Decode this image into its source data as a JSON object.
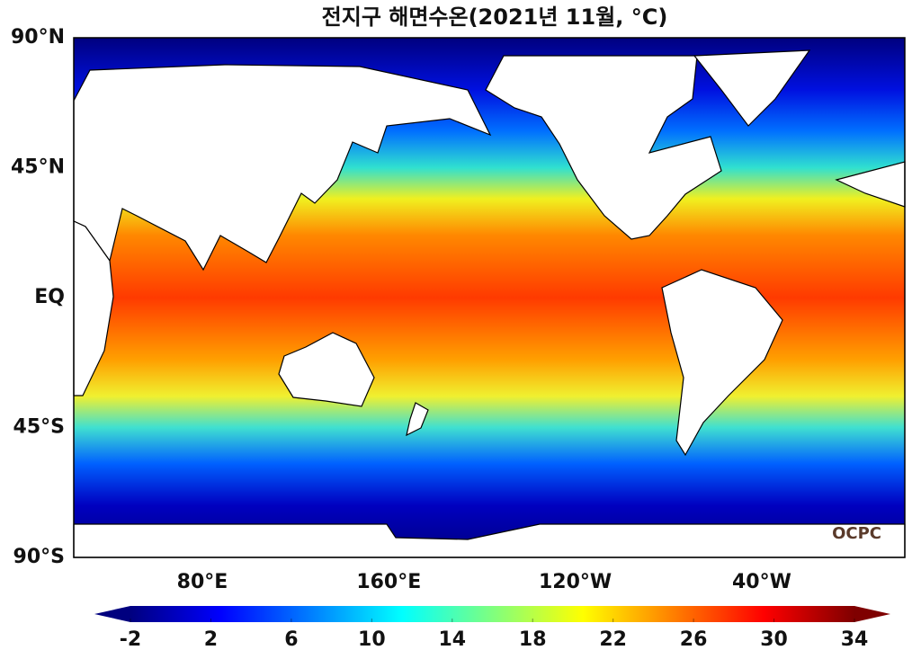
{
  "title": "전지구 해면수온(2021년 11월, °C)",
  "lat_labels": [
    "90°N",
    "45°N",
    "EQ",
    "45°S",
    "90°S"
  ],
  "lon_labels": [
    "80°E",
    "160°E",
    "120°W",
    "40°W"
  ],
  "watermark": "OCPC",
  "colorbar": {
    "range": [
      -2,
      34
    ],
    "ticks": [
      -2,
      2,
      6,
      10,
      14,
      18,
      22,
      26,
      30,
      34
    ],
    "colormap": [
      "#00007f",
      "#0000ff",
      "#007fff",
      "#00ffff",
      "#7fff7f",
      "#ffff00",
      "#ff7f00",
      "#ff0000",
      "#7f0000"
    ]
  }
}
